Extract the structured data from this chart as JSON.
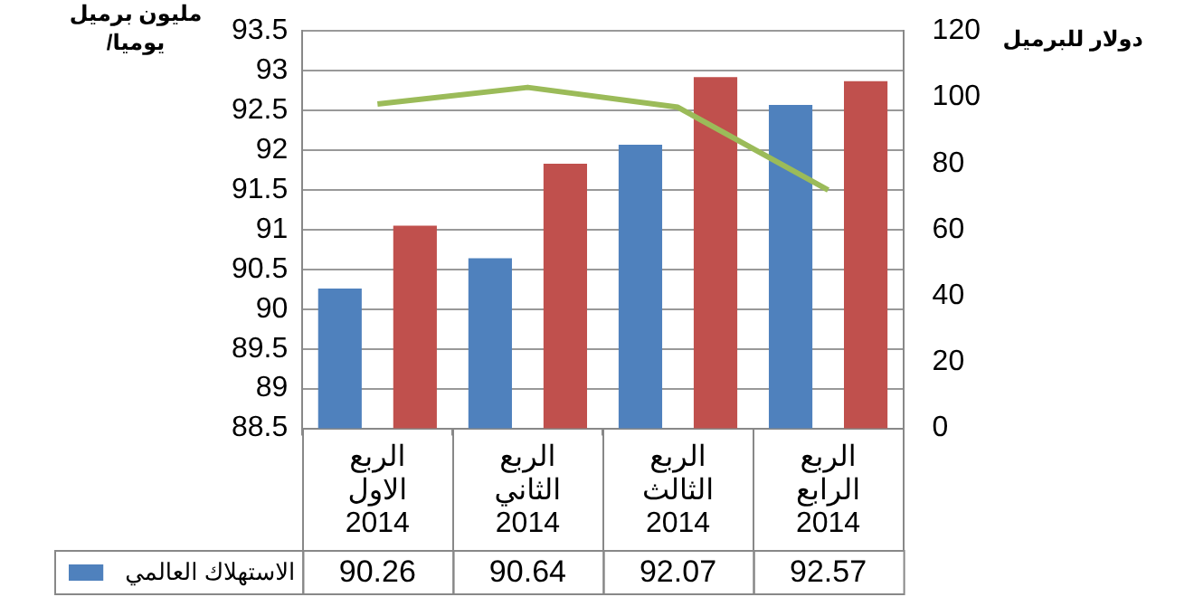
{
  "chart_data": {
    "type": "bar",
    "ylabel": "مليون برميل /يوميا",
    "y2label": "دولار للبرميل",
    "categories": [
      "الربع الاول 2014",
      "الربع الثاني 2014",
      "الربع الثالث 2014",
      "الربع الرابع 2014"
    ],
    "series": [
      {
        "name": "الاستهلاك العالمي",
        "color": "#4f81bd",
        "values": [
          90.26,
          90.64,
          92.07,
          92.57
        ],
        "value_labels": [
          "90.26",
          "90.64",
          "92.07",
          "92.57"
        ]
      },
      {
        "color": "#c0504d",
        "values": [
          91.05,
          91.83,
          92.92,
          92.87
        ]
      },
      {
        "type": "line",
        "axis": "y2",
        "color": "#9bbb59",
        "marker": "none",
        "values": [
          98,
          103,
          97,
          72
        ]
      }
    ],
    "ylim": [
      88.5,
      93.5
    ],
    "yticks": [
      88.5,
      89,
      89.5,
      90,
      90.5,
      91,
      91.5,
      92,
      92.5,
      93,
      93.5
    ],
    "y2lim": [
      0,
      120
    ],
    "y2ticks": [
      0,
      20,
      40,
      60,
      80,
      100,
      120
    ],
    "grid": "y",
    "legend": "bottom"
  }
}
